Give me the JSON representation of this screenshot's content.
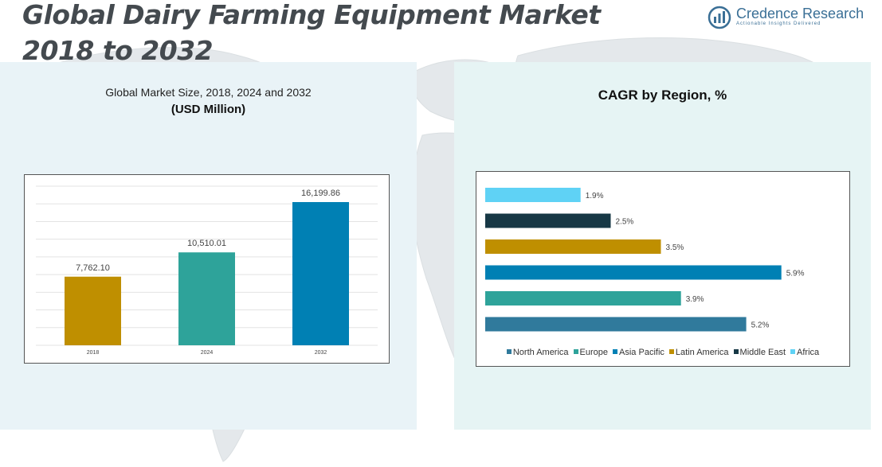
{
  "header": {
    "title_line1": "Global Dairy Farming Equipment Market",
    "title_line2": "2018 to 2032"
  },
  "logo": {
    "icon": "bar-chart-logo-icon",
    "name": "Credence Research",
    "tagline": "Actionable Insights Delivered"
  },
  "left_panel": {
    "subtitle": "Global Market Size, 2018, 2024 and 2032",
    "unit": "(USD Million)"
  },
  "right_panel": {
    "title": "CAGR by Region, %"
  },
  "chart_data": [
    {
      "type": "bar",
      "categories": [
        "2018",
        "2024",
        "2032"
      ],
      "values": [
        7762.1,
        10510.01,
        16199.86
      ],
      "labels": [
        "7,762.10",
        "10,510.01",
        "16,199.86"
      ],
      "colors": [
        "#bf8f00",
        "#2ea39a",
        "#0080b4"
      ],
      "ylim": [
        0,
        18000
      ],
      "grid": true
    },
    {
      "type": "bar",
      "orientation": "horizontal",
      "categories": [
        "Africa",
        "Middle East",
        "Latin America",
        "Asia Pacific",
        "Europe",
        "North America"
      ],
      "values": [
        1.9,
        2.5,
        3.5,
        5.9,
        3.9,
        5.2
      ],
      "labels": [
        "1.9%",
        "2.5%",
        "3.5%",
        "5.9%",
        "3.9%",
        "5.2%"
      ],
      "colors": [
        "#5fd2f5",
        "#173845",
        "#bf8f00",
        "#0080b4",
        "#2ea39a",
        "#307a9c"
      ],
      "xlim": [
        0,
        6.0
      ],
      "legend": {
        "placement": "bottom",
        "items": [
          {
            "label": "North America",
            "color": "#307a9c"
          },
          {
            "label": "Europe",
            "color": "#2ea39a"
          },
          {
            "label": "Asia Pacific",
            "color": "#0080b4"
          },
          {
            "label": "Latin America",
            "color": "#bf8f00"
          },
          {
            "label": "Middle East",
            "color": "#173845"
          },
          {
            "label": "Africa",
            "color": "#5fd2f5"
          }
        ]
      }
    }
  ]
}
